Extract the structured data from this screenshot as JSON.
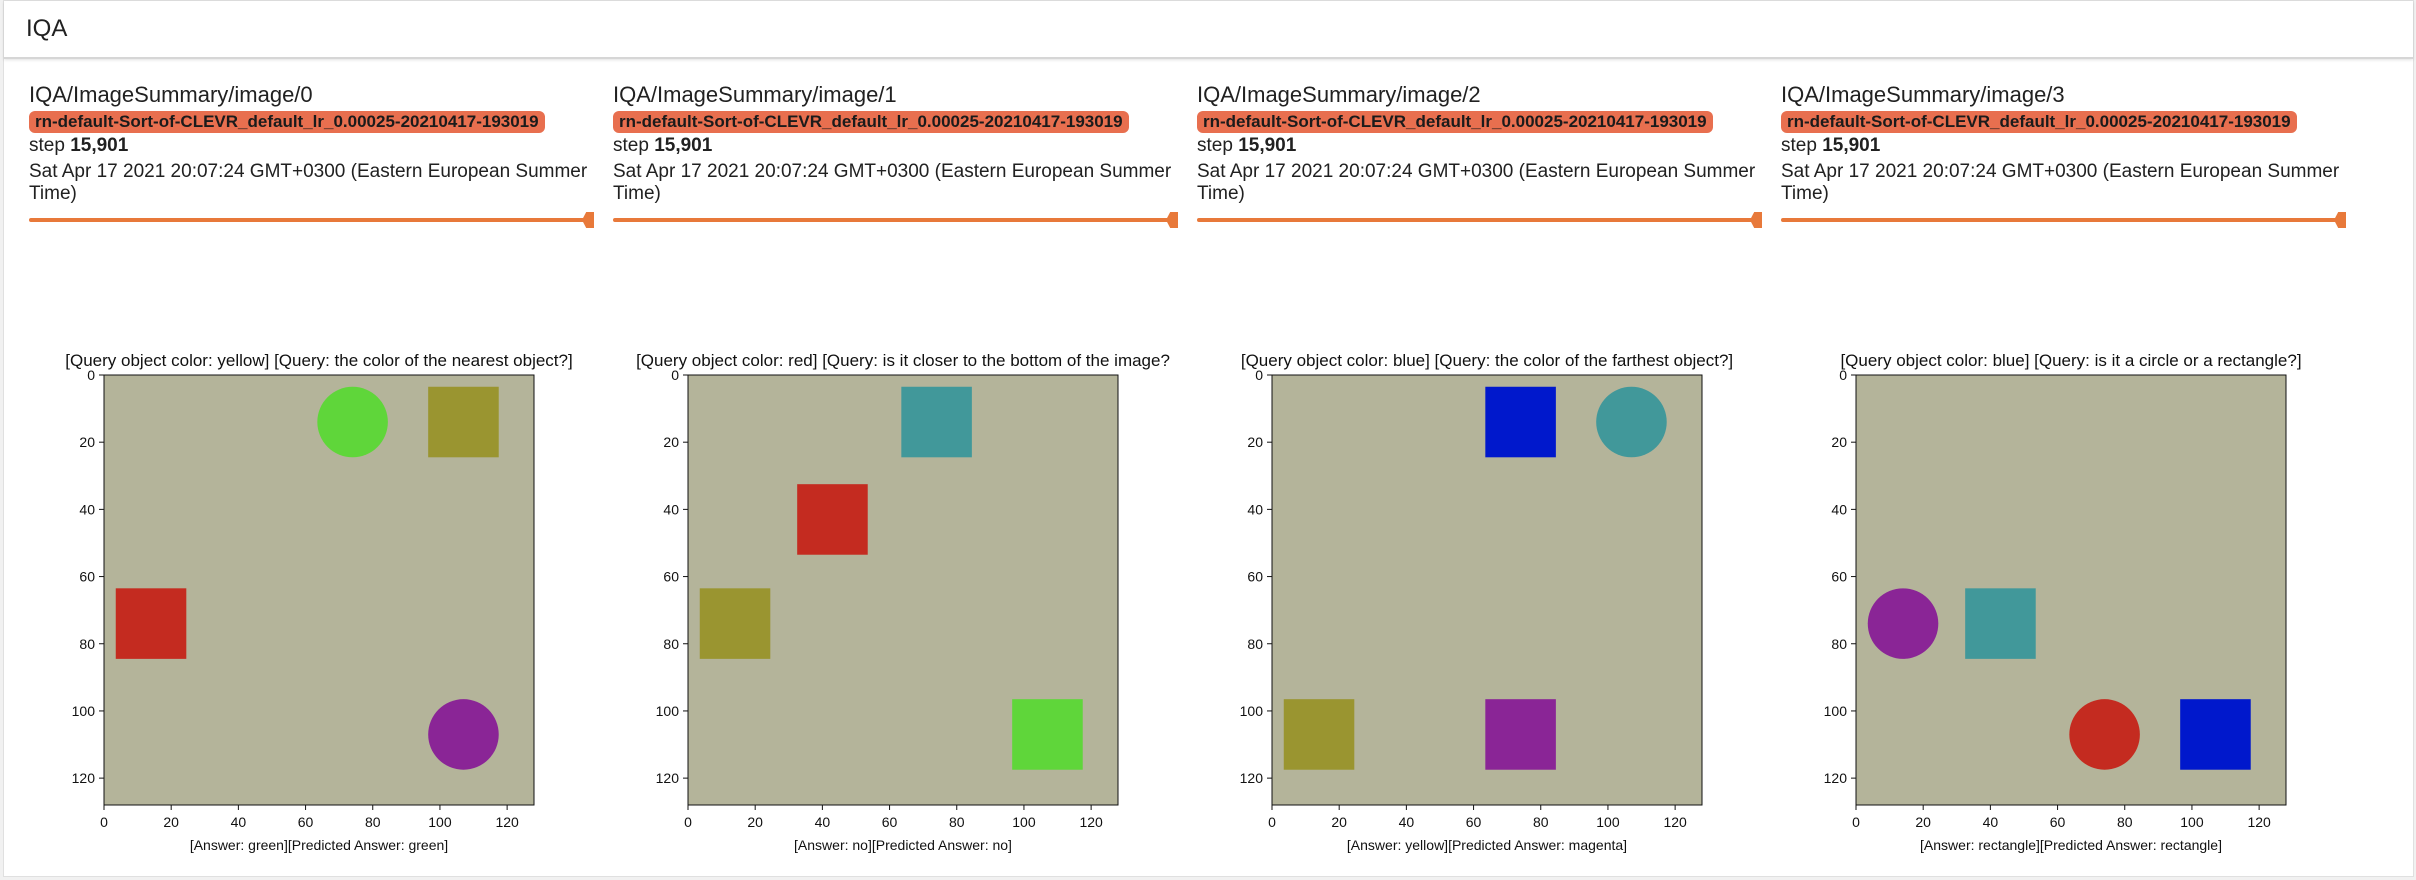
{
  "header": {
    "title": "IQA"
  },
  "cards": [
    {
      "tag": "IQA/ImageSummary/image/0",
      "run": "rn-default-Sort-of-CLEVR_default_lr_0.00025-20210417-193019",
      "step_label": "step",
      "step_value": "15,901",
      "date": "Sat Apr 17 2021 20:07:24 GMT+0300 (Eastern European Summer Time)",
      "plot_title": "[Query object color: yellow] [Query: the color of the nearest object?]",
      "plot_xlabel": "[Answer: green][Predicted Answer: green]",
      "objects": [
        {
          "shape": "circle",
          "color": "#5fd63a",
          "cx": 74,
          "cy": 14
        },
        {
          "shape": "square",
          "color": "#9a9530",
          "cx": 107,
          "cy": 14
        },
        {
          "shape": "square",
          "color": "#c42b20",
          "cx": 14,
          "cy": 74
        },
        {
          "shape": "circle",
          "color": "#8a2596",
          "cx": 107,
          "cy": 107
        }
      ]
    },
    {
      "tag": "IQA/ImageSummary/image/1",
      "run": "rn-default-Sort-of-CLEVR_default_lr_0.00025-20210417-193019",
      "step_label": "step",
      "step_value": "15,901",
      "date": "Sat Apr 17 2021 20:07:24 GMT+0300 (Eastern European Summer Time)",
      "plot_title": "[Query object color: red] [Query: is it closer to the bottom of the image?",
      "plot_xlabel": "[Answer: no][Predicted Answer: no]",
      "objects": [
        {
          "shape": "square",
          "color": "#41989a",
          "cx": 74,
          "cy": 14
        },
        {
          "shape": "square",
          "color": "#c42b20",
          "cx": 43,
          "cy": 43
        },
        {
          "shape": "square",
          "color": "#9a9530",
          "cx": 14,
          "cy": 74
        },
        {
          "shape": "square",
          "color": "#5fd63a",
          "cx": 107,
          "cy": 107
        }
      ]
    },
    {
      "tag": "IQA/ImageSummary/image/2",
      "run": "rn-default-Sort-of-CLEVR_default_lr_0.00025-20210417-193019",
      "step_label": "step",
      "step_value": "15,901",
      "date": "Sat Apr 17 2021 20:07:24 GMT+0300 (Eastern European Summer Time)",
      "plot_title": "[Query object color: blue] [Query: the color of the farthest object?]",
      "plot_xlabel": "[Answer: yellow][Predicted Answer: magenta]",
      "objects": [
        {
          "shape": "square",
          "color": "#0018cc",
          "cx": 74,
          "cy": 14
        },
        {
          "shape": "circle",
          "color": "#41989a",
          "cx": 107,
          "cy": 14
        },
        {
          "shape": "square",
          "color": "#9a9530",
          "cx": 14,
          "cy": 107
        },
        {
          "shape": "square",
          "color": "#8a2596",
          "cx": 74,
          "cy": 107
        }
      ]
    },
    {
      "tag": "IQA/ImageSummary/image/3",
      "run": "rn-default-Sort-of-CLEVR_default_lr_0.00025-20210417-193019",
      "step_label": "step",
      "step_value": "15,901",
      "date": "Sat Apr 17 2021 20:07:24 GMT+0300 (Eastern European Summer Time)",
      "plot_title": "[Query object color: blue] [Query: is it a circle or a rectangle?]",
      "plot_xlabel": "[Answer: rectangle][Predicted Answer: rectangle]",
      "objects": [
        {
          "shape": "circle",
          "color": "#8a2596",
          "cx": 14,
          "cy": 74
        },
        {
          "shape": "square",
          "color": "#41989a",
          "cx": 43,
          "cy": 74
        },
        {
          "shape": "circle",
          "color": "#c42b20",
          "cx": 74,
          "cy": 107
        },
        {
          "shape": "square",
          "color": "#0018cc",
          "cx": 107,
          "cy": 107
        }
      ]
    }
  ],
  "axis": {
    "xticks": [
      "0",
      "20",
      "40",
      "60",
      "80",
      "100",
      "120"
    ],
    "yticks": [
      "0",
      "20",
      "40",
      "60",
      "80",
      "100",
      "120"
    ],
    "range": [
      0,
      128
    ]
  },
  "colors": {
    "accent": "#e8793a",
    "chip": "#e86f4f",
    "plot_bg": "#b4b49a"
  }
}
